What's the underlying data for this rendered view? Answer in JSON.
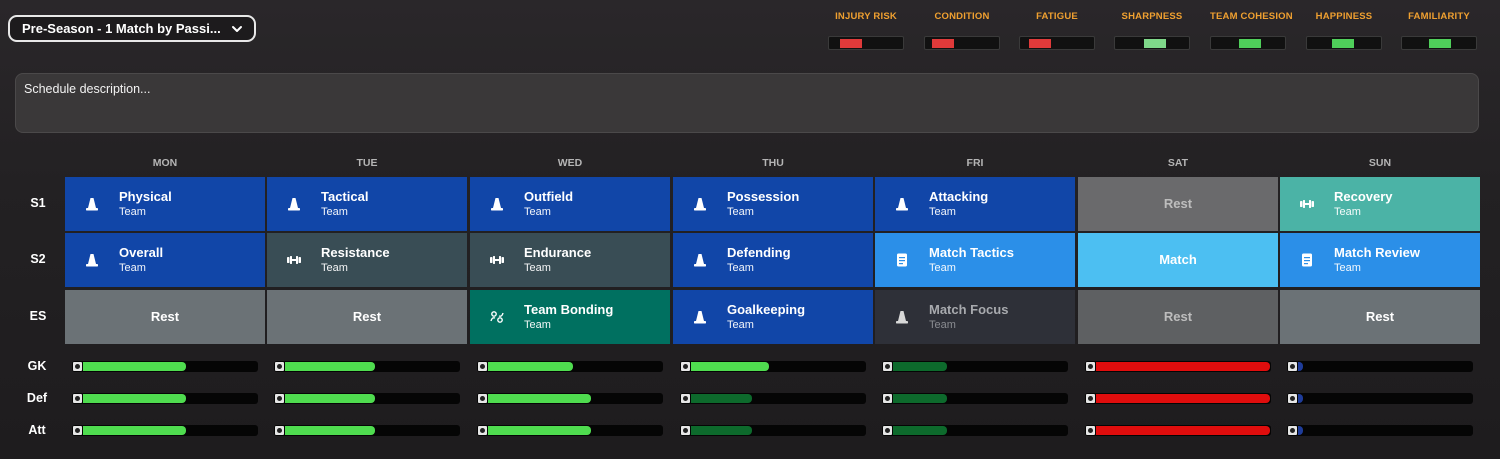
{
  "schedule_select": {
    "label": "Pre-Season - 1 Match by Passi..."
  },
  "indicators": [
    {
      "label": "INJURY RISK",
      "level": "high",
      "color": "#e03a3a",
      "offset_pct": 18
    },
    {
      "label": "CONDITION",
      "level": "high",
      "color": "#e03a3a",
      "offset_pct": 10
    },
    {
      "label": "FATIGUE",
      "level": "high",
      "color": "#e03a3a",
      "offset_pct": 14
    },
    {
      "label": "SHARPNESS",
      "level": "medium",
      "color": "#7fd88a",
      "offset_pct": 52
    },
    {
      "label": "TEAM COHESION",
      "level": "good",
      "color": "#4fcf5a",
      "offset_pct": 50
    },
    {
      "label": "HAPPINESS",
      "level": "good",
      "color": "#4fcf5a",
      "offset_pct": 45
    },
    {
      "label": "FAMILIARITY",
      "level": "good",
      "color": "#4fcf5a",
      "offset_pct": 48
    }
  ],
  "description": {
    "placeholder": "Schedule description..."
  },
  "days": [
    "MON",
    "TUE",
    "WED",
    "THU",
    "FRI",
    "SAT",
    "SUN"
  ],
  "session_rows": [
    "S1",
    "S2",
    "ES"
  ],
  "sessions": [
    [
      {
        "title": "Physical",
        "sub": "Team",
        "icon": "cone-icon",
        "color": "#1146a8"
      },
      {
        "title": "Overall",
        "sub": "Team",
        "icon": "cone-icon",
        "color": "#1146a8"
      },
      {
        "title": "Rest",
        "sub": "",
        "icon": "",
        "color": "#6b7276"
      }
    ],
    [
      {
        "title": "Tactical",
        "sub": "Team",
        "icon": "cone-icon",
        "color": "#1146a8"
      },
      {
        "title": "Resistance",
        "sub": "Team",
        "icon": "dumbbell-icon",
        "color": "#394d55"
      },
      {
        "title": "Rest",
        "sub": "",
        "icon": "",
        "color": "#6b7276"
      }
    ],
    [
      {
        "title": "Outfield",
        "sub": "Team",
        "icon": "cone-icon",
        "color": "#1146a8"
      },
      {
        "title": "Endurance",
        "sub": "Team",
        "icon": "dumbbell-icon",
        "color": "#394d55"
      },
      {
        "title": "Team Bonding",
        "sub": "Team",
        "icon": "bonding-icon",
        "color": "#007060"
      }
    ],
    [
      {
        "title": "Possession",
        "sub": "Team",
        "icon": "cone-icon",
        "color": "#1146a8"
      },
      {
        "title": "Defending",
        "sub": "Team",
        "icon": "cone-icon",
        "color": "#1146a8"
      },
      {
        "title": "Goalkeeping",
        "sub": "Team",
        "icon": "cone-icon",
        "color": "#1146a8"
      }
    ],
    [
      {
        "title": "Attacking",
        "sub": "Team",
        "icon": "cone-icon",
        "color": "#1146a8"
      },
      {
        "title": "Match Tactics",
        "sub": "Team",
        "icon": "notepad-icon",
        "color": "#2b8fe8"
      },
      {
        "title": "Match Focus",
        "sub": "Team",
        "icon": "cone-icon",
        "color": "#2e3038",
        "dim": true
      }
    ],
    [
      {
        "title": "Rest",
        "sub": "",
        "icon": "",
        "color": "#6a6a6c",
        "dim": true
      },
      {
        "title": "Match",
        "sub": "",
        "icon": "",
        "color": "#4cbff2"
      },
      {
        "title": "Rest",
        "sub": "",
        "icon": "",
        "color": "#5e6062",
        "dim": true
      }
    ],
    [
      {
        "title": "Recovery",
        "sub": "Team",
        "icon": "dumbbell-icon",
        "color": "#4bb3a6"
      },
      {
        "title": "Match Review",
        "sub": "Team",
        "icon": "notepad-icon",
        "color": "#2b8fe8"
      },
      {
        "title": "Rest",
        "sub": "",
        "icon": "",
        "color": "#6b7276"
      }
    ]
  ],
  "load_rows": [
    "GK",
    "Def",
    "Att"
  ],
  "load_levels": [
    [
      {
        "level": 0.59,
        "color": "#4fdc4f"
      },
      {
        "level": 0.59,
        "color": "#4fdc4f"
      },
      {
        "level": 0.59,
        "color": "#4fdc4f"
      }
    ],
    [
      {
        "level": 0.52,
        "color": "#4fdc4f"
      },
      {
        "level": 0.52,
        "color": "#4fdc4f"
      },
      {
        "level": 0.52,
        "color": "#4fdc4f"
      }
    ],
    [
      {
        "level": 0.49,
        "color": "#4fdc4f"
      },
      {
        "level": 0.59,
        "color": "#4fdc4f"
      },
      {
        "level": 0.59,
        "color": "#4fdc4f"
      }
    ],
    [
      {
        "level": 0.45,
        "color": "#4fdc4f"
      },
      {
        "level": 0.35,
        "color": "#0d6a2c"
      },
      {
        "level": 0.35,
        "color": "#0d6a2c"
      }
    ],
    [
      {
        "level": 0.31,
        "color": "#0d6a2c"
      },
      {
        "level": 0.31,
        "color": "#0d6a2c"
      },
      {
        "level": 0.31,
        "color": "#0d6a2c"
      }
    ],
    [
      {
        "level": 1.0,
        "color": "#e00d0d"
      },
      {
        "level": 1.0,
        "color": "#e00d0d"
      },
      {
        "level": 1.0,
        "color": "#e00d0d"
      }
    ],
    [
      {
        "level": 0.03,
        "color": "#1e3c9a"
      },
      {
        "level": 0.03,
        "color": "#1e3c9a"
      },
      {
        "level": 0.03,
        "color": "#1e3c9a"
      }
    ]
  ]
}
